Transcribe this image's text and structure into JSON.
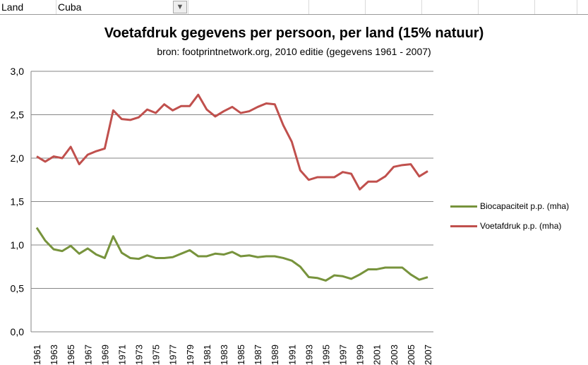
{
  "sheet": {
    "label": "Land",
    "value": "Cuba",
    "filter_icon": "filter-icon"
  },
  "chart_data": {
    "type": "line",
    "title": "Voetafdruk gegevens per persoon,  per land (15% natuur)",
    "subtitle": "bron: footprintnetwork.org, 2010 editie (gegevens 1961 - 2007)",
    "ylim": [
      0,
      3
    ],
    "yticks": [
      "0,0",
      "0,5",
      "1,0",
      "1,5",
      "2,0",
      "2,5",
      "3,0"
    ],
    "grid": true,
    "legend": "right",
    "x": [
      1961,
      1962,
      1963,
      1964,
      1965,
      1966,
      1967,
      1968,
      1969,
      1970,
      1971,
      1972,
      1973,
      1974,
      1975,
      1976,
      1977,
      1978,
      1979,
      1980,
      1981,
      1982,
      1983,
      1984,
      1985,
      1986,
      1987,
      1988,
      1989,
      1990,
      1991,
      1992,
      1993,
      1994,
      1995,
      1996,
      1997,
      1998,
      1999,
      2000,
      2001,
      2002,
      2003,
      2004,
      2005,
      2006,
      2007
    ],
    "series": [
      {
        "name": "Biocapaciteit p.p. (mha)",
        "color": "#77933c",
        "values": [
          1.2,
          1.05,
          0.95,
          0.93,
          0.99,
          0.9,
          0.96,
          0.89,
          0.85,
          1.1,
          0.91,
          0.85,
          0.84,
          0.88,
          0.85,
          0.85,
          0.86,
          0.9,
          0.94,
          0.87,
          0.87,
          0.9,
          0.89,
          0.92,
          0.87,
          0.88,
          0.86,
          0.87,
          0.87,
          0.85,
          0.82,
          0.75,
          0.63,
          0.62,
          0.59,
          0.65,
          0.64,
          0.61,
          0.66,
          0.72,
          0.72,
          0.74,
          0.74,
          0.74,
          0.66,
          0.6,
          0.63
        ]
      },
      {
        "name": "Voetafdruk p.p. (mha)",
        "color": "#c0504d",
        "values": [
          2.02,
          1.96,
          2.02,
          2.0,
          2.13,
          1.93,
          2.04,
          2.08,
          2.11,
          2.55,
          2.45,
          2.44,
          2.47,
          2.56,
          2.52,
          2.62,
          2.55,
          2.6,
          2.6,
          2.73,
          2.56,
          2.48,
          2.54,
          2.59,
          2.52,
          2.54,
          2.59,
          2.63,
          2.62,
          2.38,
          2.19,
          1.86,
          1.75,
          1.78,
          1.78,
          1.78,
          1.84,
          1.82,
          1.64,
          1.73,
          1.73,
          1.79,
          1.9,
          1.92,
          1.93,
          1.79,
          1.85
        ]
      }
    ]
  }
}
